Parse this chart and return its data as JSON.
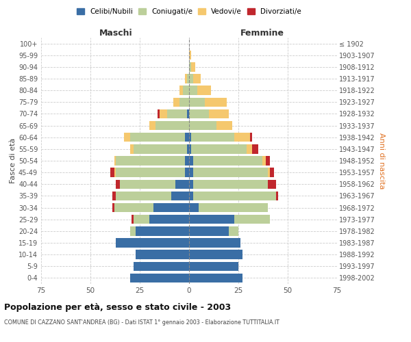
{
  "age_groups": [
    "0-4",
    "5-9",
    "10-14",
    "15-19",
    "20-24",
    "25-29",
    "30-34",
    "35-39",
    "40-44",
    "45-49",
    "50-54",
    "55-59",
    "60-64",
    "65-69",
    "70-74",
    "75-79",
    "80-84",
    "85-89",
    "90-94",
    "95-99",
    "100+"
  ],
  "birth_years": [
    "1998-2002",
    "1993-1997",
    "1988-1992",
    "1983-1987",
    "1978-1982",
    "1973-1977",
    "1968-1972",
    "1963-1967",
    "1958-1962",
    "1953-1957",
    "1948-1952",
    "1943-1947",
    "1938-1942",
    "1933-1937",
    "1928-1932",
    "1923-1927",
    "1918-1922",
    "1913-1917",
    "1908-1912",
    "1903-1907",
    "≤ 1902"
  ],
  "males": {
    "celibi": [
      30,
      28,
      27,
      37,
      27,
      20,
      18,
      9,
      7,
      2,
      2,
      1,
      2,
      0,
      1,
      0,
      0,
      0,
      0,
      0,
      0
    ],
    "coniugati": [
      0,
      0,
      0,
      0,
      3,
      8,
      20,
      28,
      28,
      35,
      35,
      27,
      28,
      17,
      10,
      5,
      3,
      1,
      0,
      0,
      0
    ],
    "vedovi": [
      0,
      0,
      0,
      0,
      0,
      0,
      0,
      0,
      0,
      1,
      1,
      2,
      3,
      3,
      4,
      3,
      2,
      1,
      0,
      0,
      0
    ],
    "divorziati": [
      0,
      0,
      0,
      0,
      0,
      1,
      1,
      2,
      2,
      2,
      0,
      0,
      0,
      0,
      1,
      0,
      0,
      0,
      0,
      0,
      0
    ]
  },
  "females": {
    "nubili": [
      27,
      25,
      27,
      26,
      20,
      23,
      5,
      2,
      2,
      2,
      2,
      1,
      1,
      0,
      0,
      0,
      0,
      0,
      0,
      0,
      0
    ],
    "coniugate": [
      0,
      0,
      0,
      0,
      5,
      18,
      35,
      42,
      38,
      38,
      35,
      28,
      22,
      14,
      10,
      8,
      4,
      2,
      1,
      0,
      0
    ],
    "vedove": [
      0,
      0,
      0,
      0,
      0,
      0,
      0,
      0,
      0,
      1,
      2,
      3,
      8,
      8,
      10,
      11,
      7,
      4,
      2,
      1,
      0
    ],
    "divorziate": [
      0,
      0,
      0,
      0,
      0,
      0,
      0,
      1,
      4,
      2,
      2,
      3,
      1,
      0,
      0,
      0,
      0,
      0,
      0,
      0,
      0
    ]
  },
  "colors": {
    "celibi": "#3A6EA5",
    "coniugati": "#BCCF9A",
    "vedovi": "#F5C86E",
    "divorziati": "#C0272D"
  },
  "xlim": 75,
  "title": "Popolazione per età, sesso e stato civile - 2003",
  "subtitle": "COMUNE DI CAZZANO SANT'ANDREA (BG) - Dati ISTAT 1° gennaio 2003 - Elaborazione TUTTITALIA.IT",
  "ylabel_left": "Fasce di età",
  "ylabel_right": "Anni di nascita",
  "xlabel_left": "Maschi",
  "xlabel_right": "Femmine",
  "legend_labels": [
    "Celibi/Nubili",
    "Coniugati/e",
    "Vedovi/e",
    "Divorziati/e"
  ],
  "bg_color": "#ffffff",
  "grid_color": "#cccccc"
}
